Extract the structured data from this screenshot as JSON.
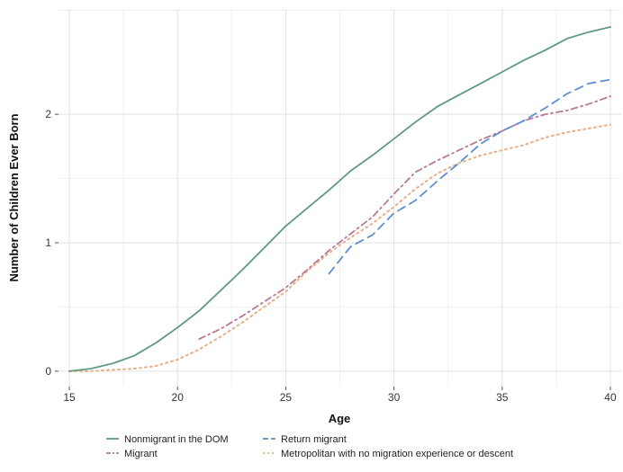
{
  "chart_data": {
    "type": "line",
    "xlabel": "Age",
    "ylabel": "Number of Children Ever Born",
    "xlim": [
      14.5,
      40.5
    ],
    "ylim": [
      -0.12,
      2.82
    ],
    "x_ticks": [
      15,
      20,
      25,
      30,
      35,
      40
    ],
    "y_ticks": [
      0,
      1,
      2
    ],
    "grid": true,
    "legend_position": "bottom",
    "series": [
      {
        "name": "Nonmigrant in the DOM",
        "color": "#5f9a7e",
        "dash": "solid",
        "points": [
          [
            15,
            0.0
          ],
          [
            16,
            0.02
          ],
          [
            17,
            0.06
          ],
          [
            18,
            0.12
          ],
          [
            19,
            0.22
          ],
          [
            20,
            0.34
          ],
          [
            21,
            0.47
          ],
          [
            22,
            0.63
          ],
          [
            23,
            0.79
          ],
          [
            24,
            0.96
          ],
          [
            25,
            1.13
          ],
          [
            26,
            1.27
          ],
          [
            27,
            1.41
          ],
          [
            28,
            1.56
          ],
          [
            29,
            1.68
          ],
          [
            30,
            1.81
          ],
          [
            31,
            1.94
          ],
          [
            32,
            2.06
          ],
          [
            33,
            2.15
          ],
          [
            34,
            2.24
          ],
          [
            35,
            2.33
          ],
          [
            36,
            2.42
          ],
          [
            37,
            2.5
          ],
          [
            38,
            2.59
          ],
          [
            39,
            2.64
          ],
          [
            40,
            2.68
          ]
        ]
      },
      {
        "name": "Return migrant",
        "color": "#5b8fd0",
        "dash": "long",
        "points": [
          [
            27,
            0.76
          ],
          [
            28,
            0.97
          ],
          [
            29,
            1.06
          ],
          [
            30,
            1.23
          ],
          [
            31,
            1.33
          ],
          [
            32,
            1.48
          ],
          [
            33,
            1.62
          ],
          [
            34,
            1.77
          ],
          [
            35,
            1.87
          ],
          [
            36,
            1.95
          ],
          [
            37,
            2.05
          ],
          [
            38,
            2.16
          ],
          [
            39,
            2.24
          ],
          [
            40,
            2.27
          ]
        ]
      },
      {
        "name": "Migrant",
        "color": "#b57a96",
        "dash": "dashdot",
        "points": [
          [
            21,
            0.25
          ],
          [
            22,
            0.33
          ],
          [
            23,
            0.43
          ],
          [
            24,
            0.54
          ],
          [
            25,
            0.65
          ],
          [
            26,
            0.79
          ],
          [
            27,
            0.94
          ],
          [
            28,
            1.07
          ],
          [
            29,
            1.2
          ],
          [
            30,
            1.38
          ],
          [
            31,
            1.55
          ],
          [
            32,
            1.64
          ],
          [
            33,
            1.72
          ],
          [
            34,
            1.8
          ],
          [
            35,
            1.87
          ],
          [
            36,
            1.95
          ],
          [
            37,
            2.0
          ],
          [
            38,
            2.03
          ],
          [
            39,
            2.08
          ],
          [
            40,
            2.14
          ]
        ]
      },
      {
        "name": "Metropolitan with no migration experience or descent",
        "color": "#e8b08a",
        "dash": "dot",
        "points": [
          [
            15,
            0.0
          ],
          [
            16,
            0.0
          ],
          [
            17,
            0.01
          ],
          [
            18,
            0.02
          ],
          [
            19,
            0.04
          ],
          [
            20,
            0.09
          ],
          [
            21,
            0.17
          ],
          [
            22,
            0.27
          ],
          [
            23,
            0.38
          ],
          [
            24,
            0.5
          ],
          [
            25,
            0.62
          ],
          [
            26,
            0.78
          ],
          [
            27,
            0.92
          ],
          [
            28,
            1.04
          ],
          [
            29,
            1.15
          ],
          [
            30,
            1.28
          ],
          [
            31,
            1.42
          ],
          [
            32,
            1.54
          ],
          [
            33,
            1.62
          ],
          [
            34,
            1.68
          ],
          [
            35,
            1.72
          ],
          [
            36,
            1.76
          ],
          [
            37,
            1.82
          ],
          [
            38,
            1.86
          ],
          [
            39,
            1.89
          ],
          [
            40,
            1.92
          ]
        ]
      }
    ]
  }
}
